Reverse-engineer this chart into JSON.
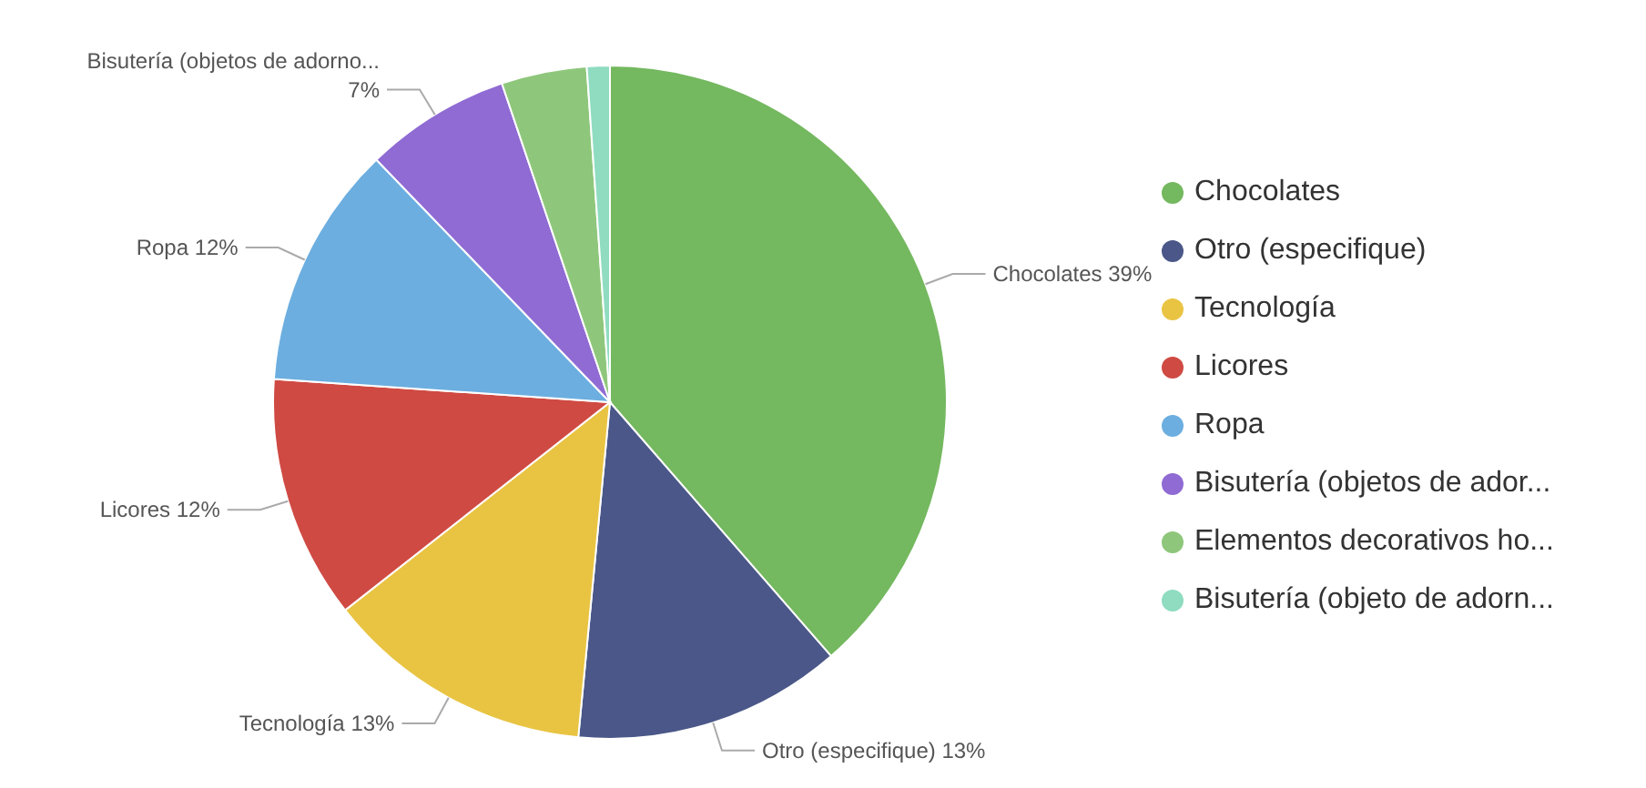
{
  "chart_data": {
    "type": "pie",
    "categories": [
      "Chocolates",
      "Otro (especifique)",
      "Tecnología",
      "Licores",
      "Ropa",
      "Bisutería (objetos de ador...",
      "Elementos decorativos ho...",
      "Bisutería (objeto de adorn..."
    ],
    "values": [
      38.6,
      12.9,
      12.9,
      11.7,
      11.7,
      7.0,
      4.1,
      1.1
    ],
    "colors": [
      "#74b85f",
      "#4a5788",
      "#e9c443",
      "#cf4a43",
      "#6caee0",
      "#8f6bd3",
      "#8ec77b",
      "#8fdcc0"
    ],
    "value_labels": [
      "Chocolates 39%",
      "Otro (especifique) 13%",
      "Tecnología 13%",
      "Licores 12%",
      "Ropa 12%",
      "Bisutería (objetos de adorno...\n7%",
      null,
      null
    ],
    "legend": "right"
  }
}
